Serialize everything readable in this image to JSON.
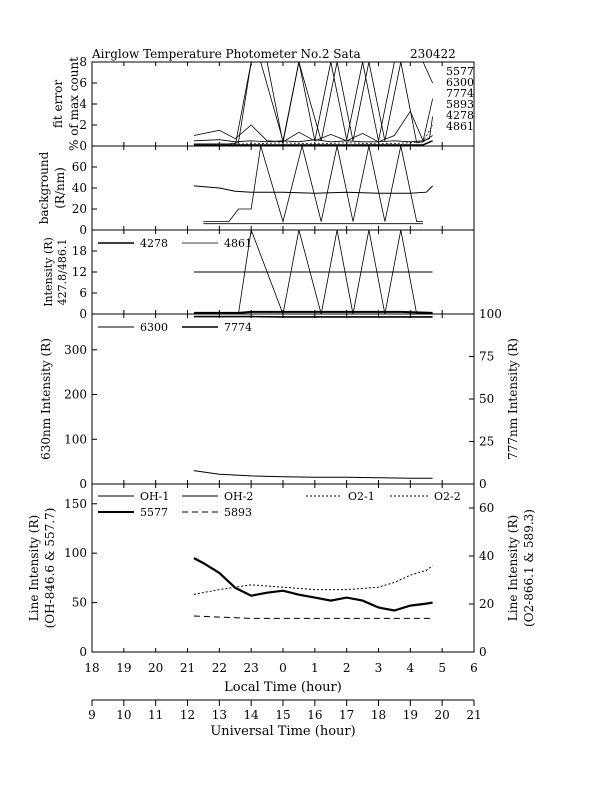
{
  "chart_data": {
    "type": "line",
    "title": "Airglow Temperature Photometer No.2  Sata",
    "date_code": "230422",
    "x_axes": {
      "local": {
        "label": "Local Time (hour)",
        "ticks": [
          "18",
          "19",
          "20",
          "21",
          "22",
          "23",
          "0",
          "1",
          "2",
          "3",
          "4",
          "5",
          "6"
        ]
      },
      "universal": {
        "label": "Universal Time (hour)",
        "ticks": [
          "9",
          "10",
          "11",
          "12",
          "13",
          "14",
          "15",
          "16",
          "17",
          "18",
          "19",
          "20",
          "21"
        ]
      },
      "range_ut": [
        9,
        21
      ]
    },
    "panels": {
      "fit_error": {
        "ylabel1": "fit error",
        "ylabel2": "% of max count",
        "ylim": [
          0,
          8
        ],
        "yticks": [
          "0",
          "2",
          "4",
          "6",
          "8"
        ],
        "legend": [
          "5577",
          "6300",
          "7774",
          "5893",
          "4278",
          "4861"
        ],
        "series": [
          {
            "name": "5577",
            "x": [
              12.2,
              13.0,
              13.5,
              14.0,
              14.5,
              15.0,
              15.5,
              16.0,
              16.5,
              17.0,
              17.5,
              18.0,
              18.5,
              19.0,
              19.4,
              19.6,
              19.7
            ],
            "y": [
              1.0,
              1.5,
              0.7,
              2.0,
              0.5,
              0.4,
              1.3,
              0.5,
              1.1,
              0.5,
              1.2,
              0.4,
              1.0,
              3.3,
              0.5,
              0.7,
              2.8
            ]
          },
          {
            "name": "6300",
            "x": [
              12.2,
              13.0,
              13.5,
              14.0,
              14.5,
              15.0,
              15.5,
              16.0,
              16.5,
              17.0,
              17.5,
              18.0,
              18.5,
              19.0,
              19.4,
              19.7
            ],
            "y": [
              0.5,
              0.6,
              0.4,
              0.5,
              0.4,
              0.5,
              0.4,
              0.6,
              0.4,
              0.5,
              0.4,
              0.4,
              0.5,
              0.4,
              0.5,
              4.5
            ]
          },
          {
            "name": "7774",
            "x": [
              12.2,
              13.5,
              14.0,
              14.5,
              15.0,
              15.5,
              16.0,
              16.5,
              17.0,
              17.5,
              18.0,
              18.5,
              19.0,
              19.4,
              19.7
            ],
            "y": [
              0.1,
              0.1,
              8,
              8,
              0.3,
              8,
              0.5,
              8,
              0.6,
              8,
              0.5,
              8,
              8,
              8,
              6.0
            ]
          },
          {
            "name": "5893",
            "x": [
              12.2,
              14.0,
              15.0,
              16.0,
              17.0,
              18.0,
              19.0,
              19.4,
              19.7
            ],
            "y": [
              0.2,
              0.2,
              0.3,
              0.2,
              0.3,
              0.2,
              0.3,
              0.4,
              2.0
            ]
          },
          {
            "name": "4278",
            "x": [
              12.2,
              13.3,
              13.6,
              14.0,
              14.3,
              15.0,
              15.5,
              16.2,
              16.7,
              17.2,
              17.7,
              18.2,
              18.7,
              19.2,
              19.4,
              19.7
            ],
            "y": [
              0.2,
              0.2,
              0.3,
              8,
              8,
              0.5,
              8,
              0.5,
              8,
              0.5,
              8,
              0.5,
              8,
              0.3,
              0.4,
              1.0
            ]
          },
          {
            "name": "4861",
            "x": [
              12.2,
              15.0,
              19.4,
              19.7
            ],
            "y": [
              0.1,
              0.1,
              0.1,
              0.5
            ]
          }
        ]
      },
      "background": {
        "ylabel1": "background",
        "ylabel2": "(R/nm)",
        "ylim": [
          0,
          80
        ],
        "yticks": [
          "0",
          "20",
          "40",
          "60"
        ],
        "series": [
          {
            "name": "upper",
            "x": [
              12.2,
              13.0,
              13.5,
              14.0,
              15.0,
              16.0,
              17.0,
              18.0,
              19.0,
              19.5,
              19.7
            ],
            "y": [
              42,
              40,
              37,
              36,
              36,
              35,
              36,
              35,
              35,
              36,
              42
            ]
          },
          {
            "name": "spikes",
            "x": [
              12.5,
              13.3,
              13.6,
              14.0,
              14.3,
              15.0,
              15.6,
              16.2,
              16.7,
              17.2,
              17.7,
              18.2,
              18.7,
              19.2,
              19.4
            ],
            "y": [
              8,
              8,
              20,
              20,
              80,
              8,
              80,
              8,
              80,
              8,
              80,
              8,
              80,
              8,
              8
            ]
          },
          {
            "name": "baseline",
            "x": [
              12.5,
              19.4
            ],
            "y": [
              6,
              6
            ]
          }
        ]
      },
      "intensity_short": {
        "ylabel1": "Intensity (R)",
        "ylabel2": "427.8/486.1",
        "ylim": [
          0,
          24
        ],
        "yticks": [
          "0",
          "6",
          "12",
          "18"
        ],
        "legend": [
          "4278",
          "4861"
        ],
        "series": [
          {
            "name": "4278",
            "x": [
              12.2,
              13.6,
              14.0,
              15.0,
              15.5,
              16.2,
              16.7,
              17.2,
              17.7,
              18.2,
              18.7,
              19.2,
              19.7
            ],
            "y": [
              0,
              0,
              24,
              0,
              24,
              0,
              24,
              0,
              24,
              0,
              24,
              0,
              0
            ]
          },
          {
            "name": "4861",
            "x": [
              12.2,
              19.7
            ],
            "y": [
              12,
              12
            ]
          },
          {
            "name": "4278-thick",
            "x": [
              12.2,
              13.6,
              14.0,
              18.7,
              19.7
            ],
            "y": [
              0.3,
              0.3,
              0.6,
              0.6,
              0.3
            ]
          }
        ]
      },
      "intensity_630": {
        "ylabel": "630nm Intensity (R)",
        "ylim": [
          0,
          380
        ],
        "yticks": [
          "0",
          "100",
          "200",
          "300"
        ],
        "ylabel_right": "777nm Intensity (R)",
        "ylim_right": [
          0,
          100
        ],
        "yticks_right": [
          "0",
          "25",
          "50",
          "75",
          "100"
        ],
        "legend": [
          "6300",
          "7774"
        ],
        "series": [
          {
            "name": "6300",
            "x": [
              12.2,
              13.0,
              14.0,
              15.0,
              16.0,
              17.0,
              18.0,
              19.0,
              19.7
            ],
            "y": [
              30,
              22,
              18,
              16,
              15,
              15,
              14,
              13,
              13
            ]
          },
          {
            "name": "7774",
            "x": [
              12.2,
              13.0,
              14.0,
              15.0,
              16.0,
              17.0,
              18.0,
              19.0,
              19.7
            ],
            "y": [
              98.5,
              98.5,
              98.5,
              98.3,
              98.3,
              98.3,
              98.3,
              98.3,
              98.3
            ]
          }
        ]
      },
      "line_intensity": {
        "ylabel1": "Line Intensity (R)",
        "ylabel2": "(OH-846.6 & 557.7)",
        "ylim": [
          0,
          170
        ],
        "yticks": [
          "0",
          "50",
          "100",
          "150"
        ],
        "ylabel_right1": "Line Intensity (R)",
        "ylabel_right2": "(O2-866.1 & 589.3)",
        "ylim_right": [
          0,
          70
        ],
        "yticks_right": [
          "0",
          "20",
          "40",
          "60"
        ],
        "legend": [
          "OH-1",
          "OH-2",
          "O2-1",
          "O2-2",
          "5577",
          "5893"
        ],
        "series": [
          {
            "name": "5577",
            "x": [
              12.2,
              12.5,
              13.0,
              13.5,
              14.0,
              14.5,
              15.0,
              15.5,
              16.0,
              16.5,
              17.0,
              17.5,
              18.0,
              18.5,
              19.0,
              19.5,
              19.7
            ],
            "y": [
              95,
              90,
              80,
              65,
              57,
              60,
              62,
              58,
              55,
              52,
              55,
              52,
              45,
              42,
              47,
              49,
              50
            ]
          },
          {
            "name": "O2-2",
            "x": [
              12.2,
              13.0,
              14.0,
              15.0,
              16.0,
              17.0,
              18.0,
              18.5,
              19.0,
              19.5,
              19.7
            ],
            "y": [
              24,
              26,
              28,
              27,
              26,
              26,
              27,
              29,
              32,
              34,
              36
            ]
          },
          {
            "name": "5893",
            "x": [
              12.2,
              14.0,
              16.0,
              18.0,
              19.7
            ],
            "y": [
              15,
              14,
              14,
              14,
              14
            ]
          }
        ]
      }
    }
  }
}
